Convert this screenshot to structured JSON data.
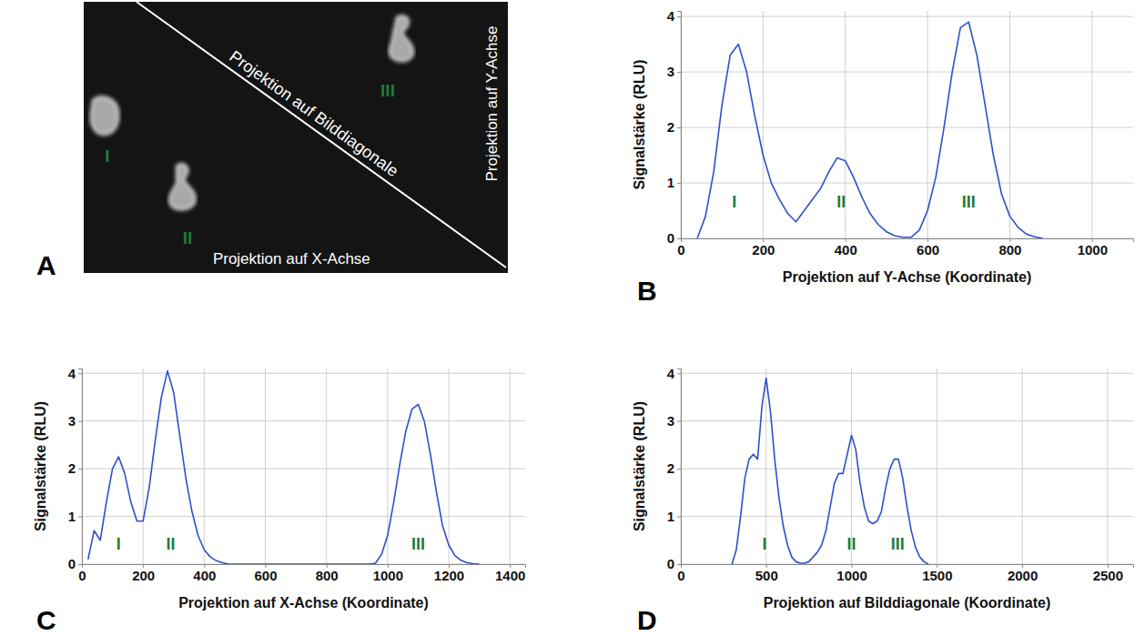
{
  "image": {
    "panel": "A",
    "captions": [
      "Projektion auf X-Achse",
      "Projektion auf Bilddiagonale",
      "Projektion auf Y-Achse"
    ],
    "cells": [
      "I",
      "II",
      "III"
    ]
  },
  "chart_data": [
    {
      "type": "line",
      "panel": "B",
      "xlabel": "Projektion auf Y-Achse (Koordinate)",
      "ylabel": "Signalstärke (RLU)",
      "xlim": [
        0,
        1100
      ],
      "xticks": [
        0,
        200,
        400,
        600,
        800,
        1000
      ],
      "ylim": [
        0,
        4.1
      ],
      "yticks": [
        0,
        1,
        2,
        3,
        4
      ],
      "grid": true,
      "series": [
        {
          "color": "#2f50c8",
          "x": [
            40,
            60,
            80,
            100,
            120,
            140,
            160,
            180,
            200,
            220,
            240,
            260,
            280,
            300,
            320,
            340,
            360,
            380,
            400,
            420,
            440,
            460,
            480,
            500,
            520,
            540,
            560,
            580,
            600,
            620,
            640,
            660,
            680,
            700,
            720,
            740,
            760,
            780,
            800,
            820,
            840,
            860,
            880
          ],
          "values": [
            0.0,
            0.4,
            1.2,
            2.4,
            3.3,
            3.5,
            3.0,
            2.2,
            1.5,
            1.0,
            0.7,
            0.45,
            0.3,
            0.5,
            0.7,
            0.9,
            1.2,
            1.45,
            1.4,
            1.1,
            0.75,
            0.45,
            0.25,
            0.12,
            0.05,
            0.02,
            0.02,
            0.15,
            0.5,
            1.1,
            2.0,
            3.0,
            3.8,
            3.9,
            3.3,
            2.4,
            1.5,
            0.8,
            0.4,
            0.2,
            0.08,
            0.03,
            0.0
          ]
        }
      ],
      "annotations": [
        {
          "text": "I",
          "x": 130,
          "y": 0.55
        },
        {
          "text": "II",
          "x": 390,
          "y": 0.55
        },
        {
          "text": "III",
          "x": 700,
          "y": 0.55
        }
      ]
    },
    {
      "type": "line",
      "panel": "C",
      "xlabel": "Projektion auf X-Achse (Koordinate)",
      "ylabel": "Signalstärke (RLU)",
      "xlim": [
        0,
        1450
      ],
      "xticks": [
        0,
        200,
        400,
        600,
        800,
        1000,
        1200,
        1400
      ],
      "ylim": [
        0,
        4.1
      ],
      "yticks": [
        0,
        1,
        2,
        3,
        4
      ],
      "grid": true,
      "series": [
        {
          "color": "#2f50c8",
          "x": [
            20,
            40,
            60,
            80,
            100,
            120,
            140,
            160,
            180,
            200,
            220,
            240,
            260,
            280,
            300,
            320,
            340,
            360,
            380,
            400,
            420,
            440,
            460,
            480,
            500,
            520,
            540,
            560,
            580,
            600,
            620,
            640,
            660,
            680,
            700,
            720,
            740,
            760,
            780,
            800,
            820,
            840,
            860,
            880,
            900,
            920,
            940,
            960,
            980,
            1000,
            1020,
            1040,
            1060,
            1080,
            1100,
            1120,
            1140,
            1160,
            1180,
            1200,
            1220,
            1240,
            1260,
            1280,
            1300
          ],
          "values": [
            0.1,
            0.7,
            0.5,
            1.3,
            2.0,
            2.25,
            1.9,
            1.3,
            0.9,
            0.9,
            1.6,
            2.6,
            3.5,
            4.05,
            3.6,
            2.7,
            1.8,
            1.1,
            0.6,
            0.3,
            0.15,
            0.07,
            0.03,
            0.0,
            0,
            0,
            0,
            0,
            0,
            0,
            0,
            0,
            0,
            0,
            0,
            0,
            0,
            0,
            0,
            0,
            0,
            0,
            0,
            0,
            0,
            0,
            0,
            0.02,
            0.2,
            0.6,
            1.3,
            2.1,
            2.8,
            3.25,
            3.35,
            3.0,
            2.3,
            1.5,
            0.8,
            0.4,
            0.18,
            0.08,
            0.03,
            0.01,
            0.0
          ]
        }
      ],
      "annotations": [
        {
          "text": "I",
          "x": 120,
          "y": 0.3
        },
        {
          "text": "II",
          "x": 290,
          "y": 0.3
        },
        {
          "text": "III",
          "x": 1100,
          "y": 0.3
        }
      ]
    },
    {
      "type": "line",
      "panel": "D",
      "xlabel": "Projektion auf Bilddiagonale (Koordinate)",
      "ylabel": "Signalstärke (RLU)",
      "xlim": [
        0,
        2650
      ],
      "xticks": [
        0,
        500,
        1000,
        1500,
        2000,
        2500
      ],
      "ylim": [
        0,
        4.1
      ],
      "yticks": [
        0,
        1,
        2,
        3,
        4
      ],
      "grid": true,
      "series": [
        {
          "color": "#2f50c8",
          "x": [
            300,
            325,
            350,
            375,
            400,
            425,
            450,
            475,
            500,
            525,
            550,
            575,
            600,
            625,
            650,
            675,
            700,
            725,
            750,
            775,
            800,
            825,
            850,
            875,
            900,
            925,
            950,
            975,
            1000,
            1025,
            1050,
            1075,
            1100,
            1125,
            1150,
            1175,
            1200,
            1225,
            1250,
            1275,
            1300,
            1325,
            1350,
            1375,
            1400,
            1425,
            1450
          ],
          "values": [
            0.0,
            0.3,
            1.0,
            1.8,
            2.2,
            2.3,
            2.2,
            3.3,
            3.9,
            3.2,
            2.2,
            1.4,
            0.8,
            0.4,
            0.15,
            0.05,
            0.02,
            0.02,
            0.05,
            0.15,
            0.25,
            0.4,
            0.7,
            1.2,
            1.7,
            1.9,
            1.9,
            2.3,
            2.7,
            2.4,
            1.7,
            1.2,
            0.9,
            0.85,
            0.9,
            1.1,
            1.6,
            2.0,
            2.2,
            2.2,
            1.8,
            1.2,
            0.7,
            0.35,
            0.15,
            0.05,
            0.0
          ]
        }
      ],
      "annotations": [
        {
          "text": "I",
          "x": 490,
          "y": 0.3
        },
        {
          "text": "II",
          "x": 1000,
          "y": 0.3
        },
        {
          "text": "III",
          "x": 1270,
          "y": 0.3
        }
      ]
    }
  ]
}
